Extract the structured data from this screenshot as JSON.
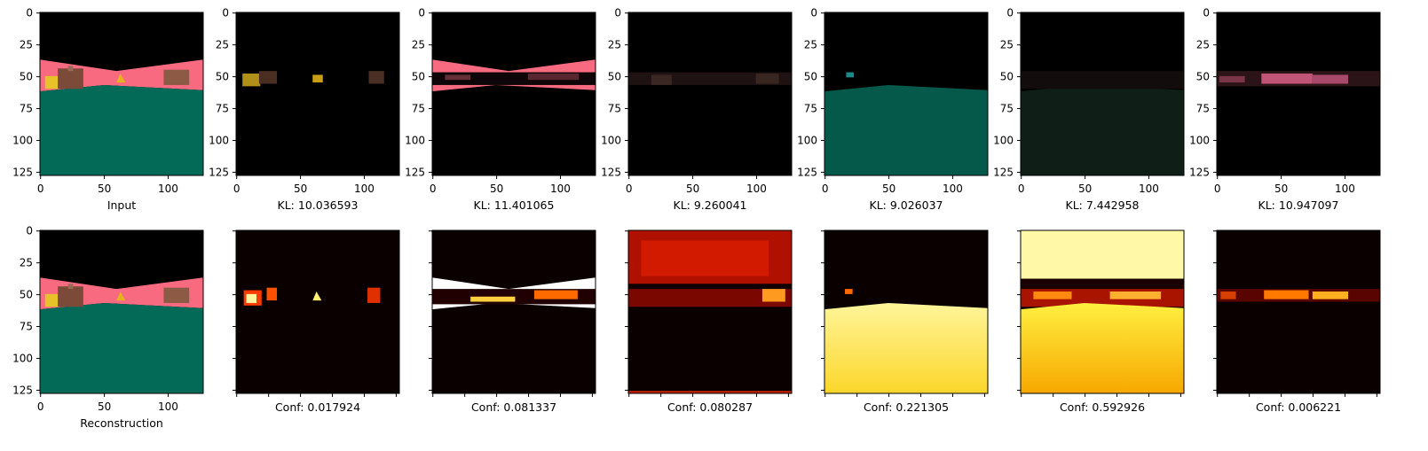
{
  "chart_data": {
    "type": "image_grid",
    "axis_ticks": [
      0,
      25,
      50,
      75,
      100,
      125
    ],
    "x_tick_labels": [
      "0",
      "50",
      "100"
    ],
    "x_range": [
      0,
      128
    ],
    "y_range": [
      0,
      128
    ],
    "top_row": [
      {
        "caption": "Input",
        "kind": "input"
      },
      {
        "caption": "KL: 10.036593",
        "kind": "mask-objects"
      },
      {
        "caption": "KL: 11.401065",
        "kind": "mask-walls"
      },
      {
        "caption": "KL: 9.260041",
        "kind": "mask-faint-objects"
      },
      {
        "caption": "KL: 9.026037",
        "kind": "mask-floor"
      },
      {
        "caption": "KL: 7.442958",
        "kind": "mask-dark-floor"
      },
      {
        "caption": "KL: 10.947097",
        "kind": "mask-pink-band"
      }
    ],
    "bottom_row": [
      {
        "caption": "Reconstruction",
        "kind": "input"
      },
      {
        "caption": "Conf: 0.017924",
        "kind": "heat-objects"
      },
      {
        "caption": "Conf: 0.081337",
        "kind": "heat-walls"
      },
      {
        "caption": "Conf: 0.080287",
        "kind": "heat-sky"
      },
      {
        "caption": "Conf: 0.221305",
        "kind": "heat-floor"
      },
      {
        "caption": "Conf: 0.592926",
        "kind": "heat-sky-floor"
      },
      {
        "caption": "Conf: 0.006221",
        "kind": "heat-band"
      }
    ],
    "colors": {
      "sky": "#000000",
      "wall": "#f76a80",
      "floor": "#046a58",
      "heat_low": "#0a0000",
      "heat_mid": "#d92a00",
      "heat_high": "#ffff40"
    }
  }
}
